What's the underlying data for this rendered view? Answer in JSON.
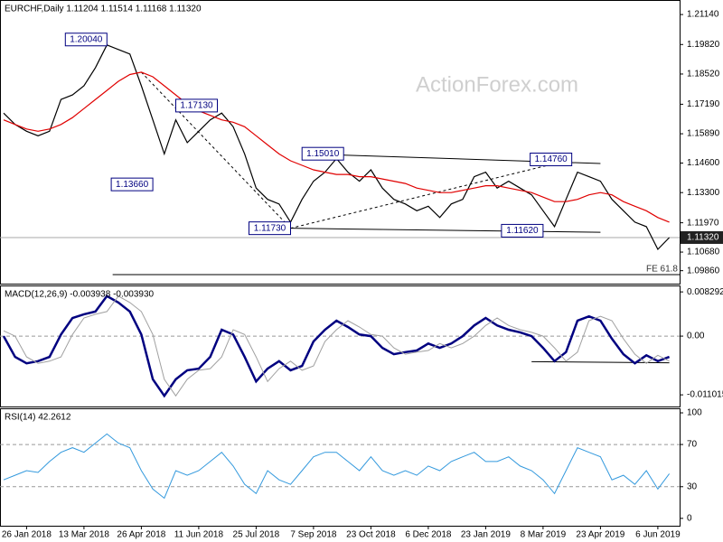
{
  "chart_data": [
    {
      "type": "line",
      "title": "EURCHF,Daily  1.11204 1.11514 1.11168 1.11320",
      "watermark": "ActionForex.com",
      "ylim": [
        1.0929,
        1.2178
      ],
      "yticks": [
        {
          "value": 1.2114,
          "label": "1.21140"
        },
        {
          "value": 1.1982,
          "label": "1.19820"
        },
        {
          "value": 1.1852,
          "label": "1.18520"
        },
        {
          "value": 1.1719,
          "label": "1.17190"
        },
        {
          "value": 1.1589,
          "label": "1.15890"
        },
        {
          "value": 1.146,
          "label": "1.14600"
        },
        {
          "value": 1.133,
          "label": "1.13300"
        },
        {
          "value": 1.1197,
          "label": "1.11970"
        },
        {
          "value": 1.1068,
          "label": "1.10680"
        },
        {
          "value": 1.0986,
          "label": "1.09860"
        }
      ],
      "price_label": {
        "value": 1.1132,
        "label": "1.11320"
      },
      "series": [
        {
          "name": "EURCHF",
          "color": "#000000",
          "values": [
            1.168,
            1.163,
            1.16,
            1.158,
            1.16,
            1.174,
            1.176,
            1.18,
            1.188,
            1.198,
            1.196,
            1.194,
            1.18,
            1.165,
            1.15,
            1.165,
            1.155,
            1.16,
            1.165,
            1.168,
            1.162,
            1.15,
            1.135,
            1.13,
            1.128,
            1.12,
            1.13,
            1.138,
            1.142,
            1.148,
            1.142,
            1.138,
            1.143,
            1.135,
            1.13,
            1.128,
            1.125,
            1.127,
            1.122,
            1.128,
            1.13,
            1.14,
            1.142,
            1.135,
            1.138,
            1.135,
            1.132,
            1.125,
            1.118,
            1.13,
            1.142,
            1.14,
            1.138,
            1.13,
            1.125,
            1.12,
            1.118,
            1.108,
            1.1132
          ]
        },
        {
          "name": "MA",
          "color": "#e00000",
          "values": [
            1.165,
            1.163,
            1.161,
            1.16,
            1.161,
            1.163,
            1.166,
            1.17,
            1.174,
            1.178,
            1.182,
            1.185,
            1.186,
            1.184,
            1.18,
            1.176,
            1.172,
            1.169,
            1.167,
            1.165,
            1.164,
            1.162,
            1.158,
            1.154,
            1.15,
            1.147,
            1.145,
            1.143,
            1.142,
            1.141,
            1.141,
            1.14,
            1.14,
            1.139,
            1.138,
            1.137,
            1.135,
            1.134,
            1.133,
            1.133,
            1.134,
            1.135,
            1.136,
            1.136,
            1.135,
            1.134,
            1.133,
            1.131,
            1.129,
            1.129,
            1.13,
            1.132,
            1.133,
            1.132,
            1.129,
            1.127,
            1.125,
            1.122,
            1.12
          ]
        }
      ],
      "annotations": [
        {
          "text": "1.20040",
          "x": 9,
          "y": 1.2004,
          "side": "left"
        },
        {
          "text": "1.17130",
          "x": 15,
          "y": 1.1713,
          "side": "right"
        },
        {
          "text": "1.13660",
          "x": 13,
          "y": 1.1366,
          "side": "left"
        },
        {
          "text": "1.11730",
          "x": 25,
          "y": 1.1173,
          "side": "left"
        },
        {
          "text": "1.15010",
          "x": 26,
          "y": 1.1501,
          "side": "right"
        },
        {
          "text": "1.14760",
          "x": 49.5,
          "y": 1.1476,
          "side": "left"
        },
        {
          "text": "1.11620",
          "x": 47,
          "y": 1.1162,
          "side": "left"
        }
      ],
      "trendlines": [
        {
          "x": [
            26,
            52
          ],
          "y": [
            1.1501,
            1.1458
          ],
          "style": "solid"
        },
        {
          "x": [
            25,
            52
          ],
          "y": [
            1.1173,
            1.1155
          ],
          "style": "solid"
        },
        {
          "x": [
            12,
            25
          ],
          "y": [
            1.186,
            1.1173
          ],
          "style": "dashed"
        },
        {
          "x": [
            25,
            49.5
          ],
          "y": [
            1.1173,
            1.1476
          ],
          "style": "dashed"
        },
        {
          "x": [
            9.5,
            58.9
          ],
          "y": [
            1.0969,
            1.0969
          ],
          "style": "solid",
          "label": "FE 61.8"
        }
      ]
    },
    {
      "type": "line",
      "title": "MACD(12,26,9) -0.003938 -0.003930",
      "ylim": [
        -0.0132,
        0.0095
      ],
      "yticks": [
        0.008292,
        {
          "value": 0,
          "label": "0.00"
        },
        -0.011015
      ],
      "reference_lines": [
        0
      ],
      "series": [
        {
          "name": "MACD",
          "color": "#000080",
          "width": 2.5,
          "values": [
            0,
            -0.0039,
            -0.0051,
            -0.0047,
            -0.0039,
            0.0003,
            0.0034,
            0.0041,
            0.0046,
            0.0075,
            0.0063,
            0.0046,
            0.0003,
            -0.0081,
            -0.0112,
            -0.0081,
            -0.0064,
            -0.0061,
            -0.0039,
            0.0012,
            0.0003,
            -0.0039,
            -0.0085,
            -0.0061,
            -0.0047,
            -0.0064,
            -0.0056,
            -0.001,
            0.0012,
            0.0029,
            0.0017,
            0.0003,
            0,
            -0.0022,
            -0.0034,
            -0.003,
            -0.0027,
            -0.0014,
            -0.0022,
            -0.0014,
            0,
            0.002,
            0.0034,
            0.002,
            0.0012,
            0.0007,
            0,
            -0.0022,
            -0.0047,
            -0.003,
            0.0029,
            0.0037,
            0.0029,
            -0.0005,
            -0.0034,
            -0.0051,
            -0.0036,
            -0.0047,
            -0.0039
          ]
        },
        {
          "name": "Signal",
          "color": "#a0a0a0",
          "width": 1,
          "values": [
            0.001,
            0,
            -0.0039,
            -0.0051,
            -0.0047,
            -0.0039,
            0.0003,
            0.0034,
            0.0041,
            0.0046,
            0.0075,
            0.0063,
            0.0046,
            0.0003,
            -0.0081,
            -0.0112,
            -0.0081,
            -0.0064,
            -0.0061,
            -0.0039,
            0.0012,
            0.0003,
            -0.0039,
            -0.0085,
            -0.0061,
            -0.0047,
            -0.0064,
            -0.0056,
            -0.001,
            0.0012,
            0.0029,
            0.0017,
            0.0003,
            0,
            -0.0022,
            -0.0034,
            -0.003,
            -0.0027,
            -0.0014,
            -0.0022,
            -0.0014,
            0,
            0.002,
            0.0034,
            0.002,
            0.0012,
            0.0007,
            0,
            -0.0022,
            -0.0047,
            -0.003,
            0.0029,
            0.0037,
            0.0029,
            -0.0005,
            -0.0034,
            -0.0051,
            -0.0036,
            -0.0047
          ]
        }
      ],
      "trendlines": [
        {
          "x": [
            46,
            58
          ],
          "y": [
            -0.0048,
            -0.005
          ],
          "style": "solid"
        }
      ]
    },
    {
      "type": "line",
      "title": "RSI(14) 42.2612",
      "ylim": [
        -7,
        104.3
      ],
      "yticks": [
        100,
        70,
        30,
        0
      ],
      "reference_lines": [
        70,
        30
      ],
      "categories": [
        null,
        null,
        "26 Jan 2018",
        null,
        null,
        null,
        null,
        "13 Mar 2018",
        null,
        null,
        null,
        null,
        "26 Apr 2018",
        null,
        null,
        null,
        null,
        "11 Jun 2018",
        null,
        null,
        null,
        null,
        "25 Jul 2018",
        null,
        null,
        null,
        null,
        "7 Sep 2018",
        null,
        null,
        null,
        null,
        "23 Oct 2018",
        null,
        null,
        null,
        null,
        "6 Dec 2018",
        null,
        null,
        null,
        null,
        "23 Jan 2019",
        null,
        null,
        null,
        null,
        "8 Mar 2019",
        null,
        null,
        null,
        null,
        "23 Apr 2019",
        null,
        null,
        null,
        null,
        "6 Jun 2019",
        null
      ],
      "series": [
        {
          "name": "RSI",
          "color": "#3399dd",
          "width": 1,
          "values": [
            36.5,
            40.9,
            45.2,
            43.5,
            53.9,
            62.6,
            67,
            62.6,
            71.3,
            80,
            71.3,
            67,
            45.2,
            27.8,
            19.1,
            45.2,
            40.9,
            45.2,
            53.9,
            62.6,
            49.6,
            32.2,
            23.5,
            45.2,
            36.5,
            32.2,
            45.2,
            58.3,
            62.6,
            62.6,
            53.9,
            45.2,
            58.3,
            45.2,
            40.9,
            45.2,
            40.9,
            49.6,
            45.2,
            53.9,
            58.3,
            62.6,
            53.9,
            53.9,
            58.3,
            49.6,
            45.2,
            36.5,
            23.5,
            45.2,
            67,
            62.6,
            58.3,
            36.5,
            40.9,
            32.2,
            45.2,
            27.8,
            42.3
          ]
        }
      ]
    }
  ]
}
